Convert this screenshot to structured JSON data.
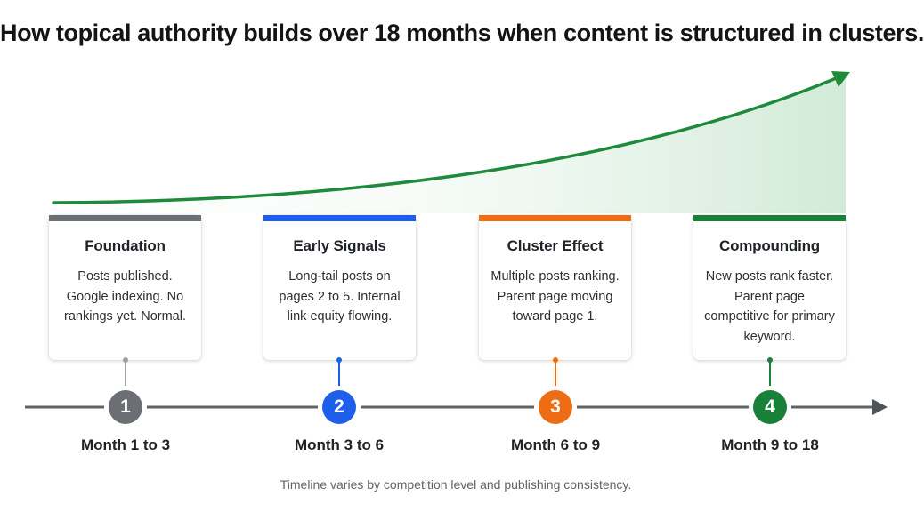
{
  "title": "How topical authority builds over 18 months when content is structured in clusters.",
  "colors": {
    "growth_curve": "#1e8a3b",
    "timeline": "#5f6368",
    "stage_1": "#6b6e73",
    "stage_2": "#1f5eea",
    "stage_3": "#ee6d14",
    "stage_4": "#188038"
  },
  "stages": [
    {
      "number": "1",
      "title": "Foundation",
      "description": "Posts published. Google indexing. No rankings yet. Normal.",
      "period": "Month 1 to 3"
    },
    {
      "number": "2",
      "title": "Early Signals",
      "description": "Long-tail posts on pages 2 to 5. Internal link equity flowing.",
      "period": "Month 3 to 6"
    },
    {
      "number": "3",
      "title": "Cluster Effect",
      "description": "Multiple posts ranking. Parent page moving toward page 1.",
      "period": "Month 6 to 9"
    },
    {
      "number": "4",
      "title": "Compounding",
      "description": "New posts rank faster. Parent page competitive for primary keyword.",
      "period": "Month 9 to 18"
    }
  ],
  "footnote": "Timeline varies by competition level and publishing consistency."
}
